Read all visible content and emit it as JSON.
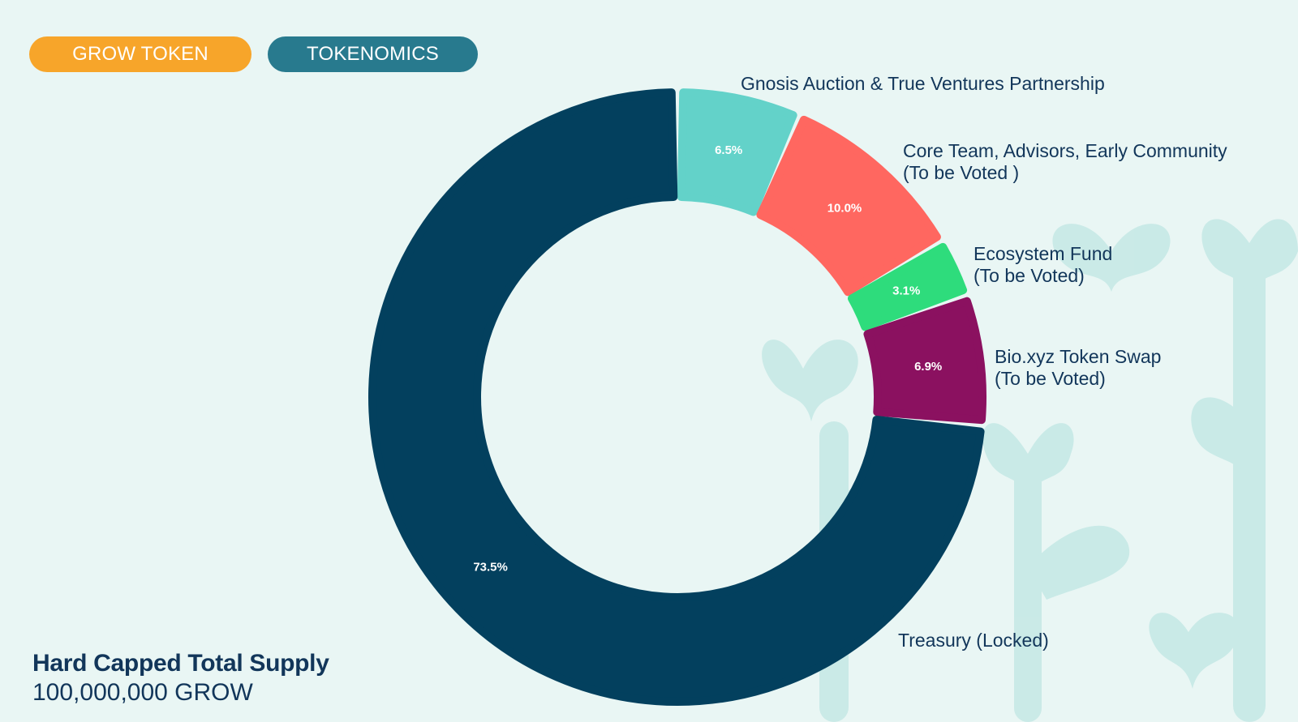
{
  "header": {
    "grow_token_label": "GROW TOKEN",
    "tokenomics_label": "TOKENOMICS"
  },
  "chart_data": {
    "type": "pie",
    "variant": "donut",
    "title": "",
    "start_angle_deg": 0,
    "slices": [
      {
        "label": "Gnosis Auction & True Ventures Partnership",
        "label_lines": [
          "Gnosis Auction & True Ventures Partnership"
        ],
        "value": 6.5,
        "value_label": "6.5%",
        "color": "#63d2c9"
      },
      {
        "label": "Core Team, Advisors, Early Community (To be Voted )",
        "label_lines": [
          "Core Team, Advisors, Early Community",
          "(To be Voted )"
        ],
        "value": 10.0,
        "value_label": "10.0%",
        "color": "#ff6760"
      },
      {
        "label": "Ecosystem Fund (To be Voted)",
        "label_lines": [
          "Ecosystem Fund",
          "(To be Voted)"
        ],
        "value": 3.1,
        "value_label": "3.1%",
        "color": "#2edc7c"
      },
      {
        "label": "Bio.xyz Token Swap (To be Voted)",
        "label_lines": [
          "Bio.xyz Token Swap",
          "(To be Voted)"
        ],
        "value": 6.9,
        "value_label": "6.9%",
        "color": "#8b1160"
      },
      {
        "label": "Treasury (Locked)",
        "label_lines": [
          "Treasury (Locked)"
        ],
        "value": 73.5,
        "value_label": "73.5%",
        "color": "#03405e"
      }
    ]
  },
  "footer": {
    "supply_title": "Hard Capped Total Supply",
    "supply_value": "100,000,000 GROW"
  },
  "colors": {
    "background": "#e9f6f4",
    "text": "#12365a",
    "pill_orange": "#f7a52a",
    "pill_teal": "#287a8e",
    "decor": "#bfe6e3"
  }
}
